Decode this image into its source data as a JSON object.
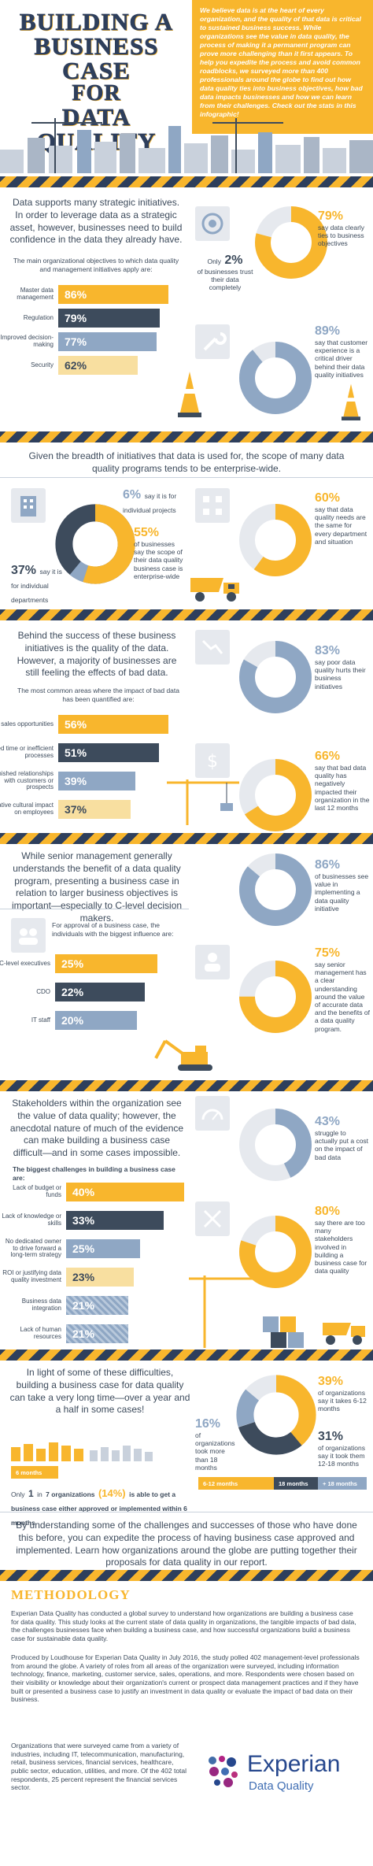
{
  "header": {
    "title_lines": [
      "BUILDING A",
      "BUSINESS CASE",
      "FOR",
      "DATA QUALITY"
    ],
    "intro": "We believe data is at the heart of every organization, and the quality of that data is critical to sustained business success. While organizations see the value in data quality, the process of making it a permanent program can prove more challenging than it first appears. To help you expedite the process and avoid common roadblocks, we surveyed more than 400 professionals around the globe to find out how data quality ties into business objectives, how bad data impacts businesses and how we can learn from their challenges. Check out the stats in this infographic!"
  },
  "s1": {
    "text": "Data supports many strategic initiatives. In order to leverage data as a strategic asset, however, businesses need to build confidence in the data they already have.",
    "bars_title": "The main organizational objectives to which data quality and management initiatives apply are:",
    "bars": [
      {
        "label": "Master data management",
        "value": "86%",
        "pct": 86
      },
      {
        "label": "Regulation",
        "value": "79%",
        "pct": 79
      },
      {
        "label": "Improved decision-making",
        "value": "77%",
        "pct": 77
      },
      {
        "label": "Security",
        "value": "62%",
        "pct": 62
      }
    ],
    "stat_a_pct": "79%",
    "stat_a_text": "say data clearly ties to business objectives",
    "stat_b_pre": "Only",
    "stat_b_pct": "2%",
    "stat_b_text": "of businesses trust their data completely",
    "stat_c_pct": "89%",
    "stat_c_text": "say that customer experience is a critical driver behind their data quality initiatives"
  },
  "s2": {
    "text": "Given the breadth of initiatives that data is used for, the scope of many data quality programs tends to be enterprise-wide.",
    "a_pct": "6%",
    "a_text": "say it is for individual projects",
    "b_pct": "55%",
    "b_text": "of businesses say the scope of their data quality business case is enterprise-wide",
    "c_pct": "37%",
    "c_text": "say it is for individual departments",
    "d_pct": "60%",
    "d_text": "say that data quality needs are the same for every department and situation"
  },
  "s3": {
    "text": "Behind the success of these business initiatives is the quality of the data. However, a majority of businesses are still feeling the effects of bad data.",
    "bars_title": "The most common areas where the impact of bad data has been quantified are:",
    "bars": [
      {
        "label": "Lost sales opportunities",
        "value": "56%",
        "pct": 56
      },
      {
        "label": "Wasted time or inefficient processes",
        "value": "51%",
        "pct": 51
      },
      {
        "label": "Tarnished relationships with customers or prospects",
        "value": "39%",
        "pct": 39
      },
      {
        "label": "Negative cultural impact on employees",
        "value": "37%",
        "pct": 37
      }
    ],
    "a_pct": "83%",
    "a_text": "say poor data quality hurts their business initiatives",
    "b_pct": "66%",
    "b_text": "say that bad data quality has negatively impacted their organization in the last 12 months"
  },
  "s4": {
    "text": "While senior management generally understands the benefit of a data quality program, presenting a business case in relation to larger business objectives is important—especially to C-level decision makers.",
    "bars_title": "For approval of a business case, the individuals with the biggest influence are:",
    "bars": [
      {
        "label": "C-level executives",
        "value": "25%",
        "pct": 25
      },
      {
        "label": "CDO",
        "value": "22%",
        "pct": 22
      },
      {
        "label": "IT staff",
        "value": "20%",
        "pct": 20
      }
    ],
    "a_pct": "86%",
    "a_text": "of businesses see value in implementing a data quality initiative",
    "b_pct": "75%",
    "b_text": "say senior management has a clear understanding around the value of accurate data and the benefits of a data quality program."
  },
  "s5": {
    "text": "Stakeholders within the organization see the value of data quality; however, the anecdotal nature of much of the evidence can make building a business case difficult—and in some cases impossible.",
    "bars_title": "The biggest challenges in building a business case are:",
    "bars": [
      {
        "label": "Lack of budget or funds",
        "value": "40%",
        "pct": 40
      },
      {
        "label": "Lack of knowledge or skills",
        "value": "33%",
        "pct": 33
      },
      {
        "label": "No dedicated owner to drive forward a long-term strategy",
        "value": "25%",
        "pct": 25
      },
      {
        "label": "ROI or justifying data quality investment",
        "value": "23%",
        "pct": 23
      },
      {
        "label": "Business data integration",
        "value": "21%",
        "pct": 21
      },
      {
        "label": "Lack of human resources",
        "value": "21%",
        "pct": 21
      }
    ],
    "a_pct": "43%",
    "a_text": "struggle to actually put a cost on the impact of bad data",
    "b_pct": "80%",
    "b_text": "say there are too many stakeholders involved in building a business case for data quality"
  },
  "s6": {
    "text": "In light of some of these difficulties, building a business case for data quality can take a very long time—over a year and a half in some cases!",
    "months_label": "6 months",
    "only_pre": "Only",
    "only_num": "1",
    "only_mid": "in",
    "only_text": "7 organizations",
    "only_pct": "(14%)",
    "only_rest": "is able to get a business case either approved or implemented within 6 months",
    "a_pct": "39%",
    "a_text": "of organizations say it takes 6-12 months",
    "b_pct": "16%",
    "b_text": "of organizations took more than 18 months",
    "c_pct": "31%",
    "c_text": "of organizations say it took them 12-18 months",
    "legend": [
      "6-12 months",
      "18 months",
      "+ 18 months"
    ]
  },
  "closing": "By understanding some of the challenges and successes of those who have done this before, you can expedite the process of having business case approved and implemented. Learn how organizations around the globe are putting together their proposals for data quality in our report.",
  "method": {
    "title": "METHODOLOGY",
    "p1": "Experian Data Quality has conducted a global survey to understand how organizations are building a business case for data quality. This study looks at the current state of data quality in organizations, the tangible impacts of bad data, the challenges businesses face when building a business case, and how successful organizations build a business case for sustainable data quality.",
    "p2": "Produced by Loudhouse for Experian Data Quality in July 2016, the study polled 402 management-level professionals from around the globe. A variety of roles from all areas of the organization were surveyed, including information technology, finance, marketing, customer service, sales, operations, and more. Respondents were chosen based on their visibility or knowledge about their organization's current or prospect data management practices and if they have built or presented a business case to justify an investment in data quality or evaluate the impact of bad data on their business.",
    "p3": "Organizations that were surveyed came from a variety of industries, including IT, telecommunication, manufacturing, retail, business services, financial services, healthcare, public sector, education, utilities, and more. Of the 402 total respondents, 25 percent represent the financial services sector.",
    "logo_name": "Experian",
    "logo_sub": "Data Quality"
  },
  "colors": {
    "yellow": "#f8b62d",
    "navy": "#3d4b5c",
    "blue": "#8fa7c4",
    "light": "#f8dfa0"
  }
}
